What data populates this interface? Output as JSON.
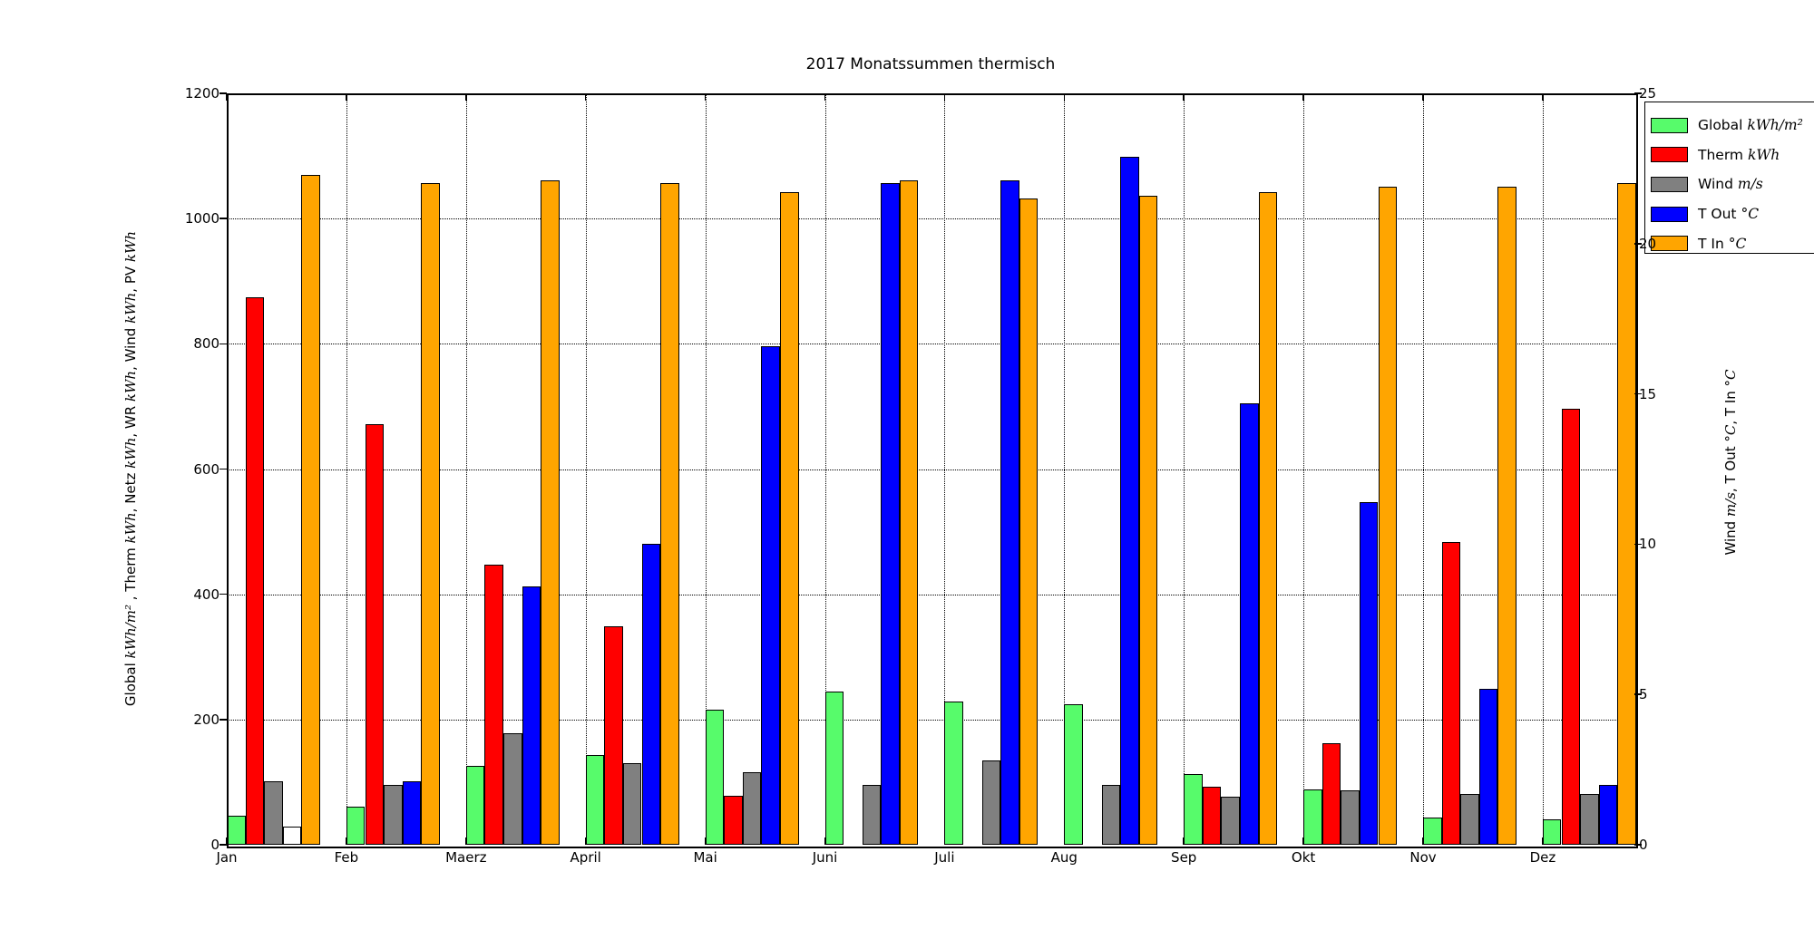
{
  "title": "2017 Monatssummen thermisch",
  "axes": {
    "left_label_segments": [
      [
        "Global ",
        1
      ],
      [
        "kWh/m²",
        2
      ],
      [
        " , Therm ",
        1
      ],
      [
        "kWh",
        2
      ],
      [
        ", Netz ",
        1
      ],
      [
        "kWh",
        2
      ],
      [
        ", WR ",
        1
      ],
      [
        "kWh",
        2
      ],
      [
        ", Wind ",
        1
      ],
      [
        "kWh",
        2
      ],
      [
        ", PV ",
        1
      ],
      [
        "kWh",
        2
      ]
    ],
    "right_label_segments": [
      [
        "Wind ",
        1
      ],
      [
        "m/s",
        2
      ],
      [
        ", T Out ",
        1
      ],
      [
        "°C",
        2
      ],
      [
        ", T In ",
        1
      ],
      [
        "°C",
        2
      ]
    ]
  },
  "chart_data": {
    "type": "bar",
    "title": "2017 Monatssummen thermisch",
    "categories": [
      "Jan",
      "Feb",
      "Maerz",
      "April",
      "Mai",
      "Juni",
      "Juli",
      "Aug",
      "Sep",
      "Okt",
      "Nov",
      "Dez"
    ],
    "left_axis": {
      "ticks": [
        0,
        200,
        400,
        600,
        800,
        1000,
        1200
      ],
      "range": [
        0,
        1200
      ]
    },
    "right_axis": {
      "ticks": [
        0,
        5,
        10,
        15,
        20,
        25
      ],
      "range": [
        0,
        25
      ]
    },
    "grid": true,
    "legend_position": "upper right, clipped at image edge",
    "series": [
      {
        "name": "Global",
        "unit": "kWh/m²",
        "axis": "left",
        "color": "#57fb6b",
        "values": [
          46,
          61,
          126,
          144,
          215,
          245,
          229,
          224,
          113,
          88,
          43,
          40
        ]
      },
      {
        "name": "Therm",
        "unit": "kWh",
        "axis": "left",
        "color": "#ff0000",
        "values": [
          875,
          672,
          448,
          349,
          78,
          0,
          0,
          0,
          92,
          162,
          484,
          696
        ]
      },
      {
        "name": "Wind",
        "unit": "m/s",
        "axis": "right",
        "color": "#808080",
        "values": [
          2.1,
          2.0,
          3.7,
          2.7,
          2.4,
          2.0,
          2.8,
          2.0,
          1.6,
          1.8,
          1.7,
          1.7
        ]
      },
      {
        "name": "T Out",
        "unit": "°C",
        "axis": "right",
        "color": "#0000ff",
        "values": [
          0.6,
          2.1,
          8.6,
          10.0,
          16.6,
          22.0,
          22.1,
          22.9,
          14.7,
          11.4,
          5.2,
          2.0
        ],
        "point_fill_overrides": {
          "0": "#ffffff"
        }
      },
      {
        "name": "T In",
        "unit": "°C",
        "axis": "right",
        "color": "#ffa500",
        "values": [
          22.3,
          22.0,
          22.1,
          22.0,
          21.7,
          22.1,
          21.5,
          21.6,
          21.7,
          21.9,
          21.9,
          22.0
        ]
      }
    ]
  }
}
